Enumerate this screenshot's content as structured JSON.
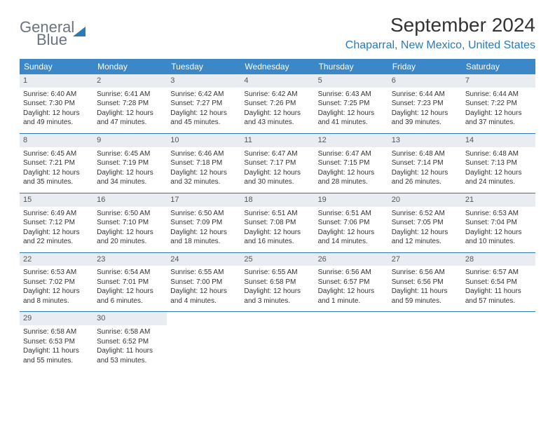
{
  "logo": {
    "line1": "General",
    "line2": "Blue"
  },
  "title": "September 2024",
  "location": "Chaparral, New Mexico, United States",
  "header_bg": "#3b87c8",
  "row_border": "#2a7ab8",
  "daynum_bg": "#e9edf1",
  "weekdays": [
    "Sunday",
    "Monday",
    "Tuesday",
    "Wednesday",
    "Thursday",
    "Friday",
    "Saturday"
  ],
  "weeks": [
    [
      {
        "n": "1",
        "sr": "Sunrise: 6:40 AM",
        "ss": "Sunset: 7:30 PM",
        "dl": "Daylight: 12 hours and 49 minutes."
      },
      {
        "n": "2",
        "sr": "Sunrise: 6:41 AM",
        "ss": "Sunset: 7:28 PM",
        "dl": "Daylight: 12 hours and 47 minutes."
      },
      {
        "n": "3",
        "sr": "Sunrise: 6:42 AM",
        "ss": "Sunset: 7:27 PM",
        "dl": "Daylight: 12 hours and 45 minutes."
      },
      {
        "n": "4",
        "sr": "Sunrise: 6:42 AM",
        "ss": "Sunset: 7:26 PM",
        "dl": "Daylight: 12 hours and 43 minutes."
      },
      {
        "n": "5",
        "sr": "Sunrise: 6:43 AM",
        "ss": "Sunset: 7:25 PM",
        "dl": "Daylight: 12 hours and 41 minutes."
      },
      {
        "n": "6",
        "sr": "Sunrise: 6:44 AM",
        "ss": "Sunset: 7:23 PM",
        "dl": "Daylight: 12 hours and 39 minutes."
      },
      {
        "n": "7",
        "sr": "Sunrise: 6:44 AM",
        "ss": "Sunset: 7:22 PM",
        "dl": "Daylight: 12 hours and 37 minutes."
      }
    ],
    [
      {
        "n": "8",
        "sr": "Sunrise: 6:45 AM",
        "ss": "Sunset: 7:21 PM",
        "dl": "Daylight: 12 hours and 35 minutes."
      },
      {
        "n": "9",
        "sr": "Sunrise: 6:45 AM",
        "ss": "Sunset: 7:19 PM",
        "dl": "Daylight: 12 hours and 34 minutes."
      },
      {
        "n": "10",
        "sr": "Sunrise: 6:46 AM",
        "ss": "Sunset: 7:18 PM",
        "dl": "Daylight: 12 hours and 32 minutes."
      },
      {
        "n": "11",
        "sr": "Sunrise: 6:47 AM",
        "ss": "Sunset: 7:17 PM",
        "dl": "Daylight: 12 hours and 30 minutes."
      },
      {
        "n": "12",
        "sr": "Sunrise: 6:47 AM",
        "ss": "Sunset: 7:15 PM",
        "dl": "Daylight: 12 hours and 28 minutes."
      },
      {
        "n": "13",
        "sr": "Sunrise: 6:48 AM",
        "ss": "Sunset: 7:14 PM",
        "dl": "Daylight: 12 hours and 26 minutes."
      },
      {
        "n": "14",
        "sr": "Sunrise: 6:48 AM",
        "ss": "Sunset: 7:13 PM",
        "dl": "Daylight: 12 hours and 24 minutes."
      }
    ],
    [
      {
        "n": "15",
        "sr": "Sunrise: 6:49 AM",
        "ss": "Sunset: 7:12 PM",
        "dl": "Daylight: 12 hours and 22 minutes."
      },
      {
        "n": "16",
        "sr": "Sunrise: 6:50 AM",
        "ss": "Sunset: 7:10 PM",
        "dl": "Daylight: 12 hours and 20 minutes."
      },
      {
        "n": "17",
        "sr": "Sunrise: 6:50 AM",
        "ss": "Sunset: 7:09 PM",
        "dl": "Daylight: 12 hours and 18 minutes."
      },
      {
        "n": "18",
        "sr": "Sunrise: 6:51 AM",
        "ss": "Sunset: 7:08 PM",
        "dl": "Daylight: 12 hours and 16 minutes."
      },
      {
        "n": "19",
        "sr": "Sunrise: 6:51 AM",
        "ss": "Sunset: 7:06 PM",
        "dl": "Daylight: 12 hours and 14 minutes."
      },
      {
        "n": "20",
        "sr": "Sunrise: 6:52 AM",
        "ss": "Sunset: 7:05 PM",
        "dl": "Daylight: 12 hours and 12 minutes."
      },
      {
        "n": "21",
        "sr": "Sunrise: 6:53 AM",
        "ss": "Sunset: 7:04 PM",
        "dl": "Daylight: 12 hours and 10 minutes."
      }
    ],
    [
      {
        "n": "22",
        "sr": "Sunrise: 6:53 AM",
        "ss": "Sunset: 7:02 PM",
        "dl": "Daylight: 12 hours and 8 minutes."
      },
      {
        "n": "23",
        "sr": "Sunrise: 6:54 AM",
        "ss": "Sunset: 7:01 PM",
        "dl": "Daylight: 12 hours and 6 minutes."
      },
      {
        "n": "24",
        "sr": "Sunrise: 6:55 AM",
        "ss": "Sunset: 7:00 PM",
        "dl": "Daylight: 12 hours and 4 minutes."
      },
      {
        "n": "25",
        "sr": "Sunrise: 6:55 AM",
        "ss": "Sunset: 6:58 PM",
        "dl": "Daylight: 12 hours and 3 minutes."
      },
      {
        "n": "26",
        "sr": "Sunrise: 6:56 AM",
        "ss": "Sunset: 6:57 PM",
        "dl": "Daylight: 12 hours and 1 minute."
      },
      {
        "n": "27",
        "sr": "Sunrise: 6:56 AM",
        "ss": "Sunset: 6:56 PM",
        "dl": "Daylight: 11 hours and 59 minutes."
      },
      {
        "n": "28",
        "sr": "Sunrise: 6:57 AM",
        "ss": "Sunset: 6:54 PM",
        "dl": "Daylight: 11 hours and 57 minutes."
      }
    ],
    [
      {
        "n": "29",
        "sr": "Sunrise: 6:58 AM",
        "ss": "Sunset: 6:53 PM",
        "dl": "Daylight: 11 hours and 55 minutes."
      },
      {
        "n": "30",
        "sr": "Sunrise: 6:58 AM",
        "ss": "Sunset: 6:52 PM",
        "dl": "Daylight: 11 hours and 53 minutes."
      },
      null,
      null,
      null,
      null,
      null
    ]
  ]
}
